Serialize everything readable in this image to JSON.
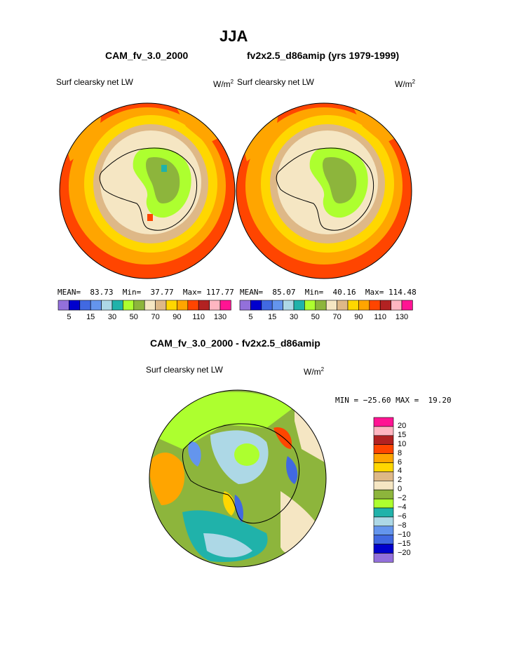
{
  "page_title": "JJA",
  "panels": [
    {
      "name": "CAM_fv_3.0_2000",
      "variable": "Surf clearsky net LW",
      "units": "W/m",
      "units_sup": "2",
      "mean_label": "MEAN=",
      "mean": "83.73",
      "min_label": "Min=",
      "min": "37.77",
      "max_label": "Max=",
      "max": "117.77"
    },
    {
      "name": "fv2x2.5_d86amip (yrs 1979-1999)",
      "variable": "Surf clearsky net LW",
      "units": "W/m",
      "units_sup": "2",
      "mean_label": "MEAN=",
      "mean": "85.07",
      "min_label": "Min=",
      "min": "40.16",
      "max_label": "Max=",
      "max": "114.48"
    }
  ],
  "top_colorbar": {
    "colors": [
      "#9370DB",
      "#0000CD",
      "#4169E1",
      "#6495ED",
      "#ADD8E6",
      "#20B2AA",
      "#ADFF2F",
      "#8DB53C",
      "#F5E6C3",
      "#DEB887",
      "#FFD700",
      "#FFA500",
      "#FF4500",
      "#B22222",
      "#FFB6C1",
      "#FF1493"
    ],
    "labels": [
      "5",
      "15",
      "30",
      "50",
      "70",
      "90",
      "110",
      "130"
    ]
  },
  "diff_panel": {
    "title": "CAM_fv_3.0_2000 - fv2x2.5_d86amip",
    "variable": "Surf clearsky net LW",
    "units": "W/m",
    "units_sup": "2",
    "minmax": "MIN = −25.60 MAX =  19.20",
    "colorbar": {
      "colors_top_to_bottom": [
        "#FF1493",
        "#FFB6C1",
        "#B22222",
        "#FF4500",
        "#FFA500",
        "#FFD700",
        "#DEB887",
        "#F5E6C3",
        "#8DB53C",
        "#ADFF2F",
        "#20B2AA",
        "#ADD8E6",
        "#6495ED",
        "#4169E1",
        "#0000CD",
        "#9370DB"
      ],
      "labels_top_to_bottom": [
        "20",
        "15",
        "10",
        "8",
        "6",
        "4",
        "2",
        "0",
        "−2",
        "−4",
        "−6",
        "−8",
        "−10",
        "−15",
        "−20"
      ]
    }
  }
}
